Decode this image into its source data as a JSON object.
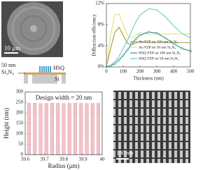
{
  "chart_data": [
    {
      "type": "line",
      "x": [
        0,
        25,
        50,
        75,
        100,
        125,
        150,
        175,
        200,
        250,
        300,
        350,
        400,
        450,
        500
      ],
      "xlabel": "Thickness (nm)",
      "ylabel": "Diffraction efficiency",
      "xlim": [
        0,
        500
      ],
      "xticks": [
        0,
        100,
        200,
        300,
        400,
        500
      ],
      "ylim": [
        0,
        12
      ],
      "yticks": [
        {
          "value": 0,
          "label": "0%"
        },
        {
          "value": 4,
          "label": "4%"
        },
        {
          "value": 8,
          "label": "8%"
        },
        {
          "value": 12,
          "label": "12%"
        }
      ],
      "series": [
        {
          "name": "Au FZP on 100 nm Si₃N₄",
          "color": "#a89a2a",
          "values": [
            0,
            3.5,
            6.5,
            7.5,
            6,
            4.5,
            4.2,
            4.5,
            4.8,
            4.6,
            4.6,
            4.6,
            4.6,
            4.6,
            4.6
          ]
        },
        {
          "name": "Au FZP on 50 nm Si₃N₄",
          "color": "#e6df7a",
          "values": [
            0,
            6,
            9.8,
            10,
            8,
            6,
            5.5,
            6,
            6.5,
            6.2,
            6.2,
            6.2,
            6.2,
            6.2,
            6.2
          ]
        },
        {
          "name": "HSQ FZP on 100 nm Si₃N₄",
          "color": "#2f8c8c",
          "marker": "circle",
          "values": [
            0,
            0.2,
            0.6,
            1.3,
            2.2,
            3.2,
            4.3,
            5.3,
            6,
            6.6,
            6.4,
            5.5,
            4.4,
            3.5,
            3
          ]
        },
        {
          "name": "HSQ FZP on 50 nm Si₃N₄",
          "color": "#6cc9c9",
          "values": [
            0,
            0.3,
            1,
            2,
            3.5,
            5,
            6.8,
            8.5,
            9.8,
            11,
            10.8,
            9.5,
            7.8,
            6.3,
            5.5
          ]
        }
      ]
    },
    {
      "type": "bar",
      "x": [
        39.62,
        39.65,
        39.68,
        39.71,
        39.74,
        39.77,
        39.8,
        39.83,
        39.86,
        39.89,
        39.92,
        39.95,
        39.98
      ],
      "values": [
        245,
        246,
        244,
        245,
        246,
        245,
        244,
        245,
        246,
        245,
        244,
        245,
        245
      ],
      "color": "#f4c2c8",
      "edgecolor": "#d48a9a",
      "annotation": "Design width = 20 nm",
      "xlabel": "Radius (μm)",
      "ylabel": "Height (nm)",
      "xlim": [
        39.6,
        40.0
      ],
      "xticks": [
        39.6,
        39.7,
        39.8,
        39.9,
        40.0
      ],
      "ylim": [
        0,
        300
      ],
      "yticks": [
        0,
        50,
        100,
        150,
        200,
        250,
        300
      ],
      "grid": true
    }
  ],
  "images": [
    {
      "scale_label": "10 μm"
    },
    {
      "scale_label": "100 nm"
    }
  ],
  "schematic": {
    "thickness_label": "50 nm",
    "membrane": "Si₃N₄",
    "resist": "HSQ",
    "substrate": "Si"
  }
}
